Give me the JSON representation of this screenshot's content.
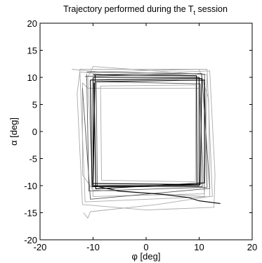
{
  "chart_data": {
    "type": "line",
    "title": "Trajectory performed during the T",
    "title_subscript": "t",
    "title_suffix": " session",
    "xlabel": "φ [deg]",
    "ylabel": "α [deg]",
    "xlim": [
      -20,
      20
    ],
    "ylim": [
      -20,
      20
    ],
    "xticks": [
      -20,
      -10,
      0,
      10,
      20
    ],
    "yticks": [
      -20,
      -15,
      -10,
      -5,
      0,
      5,
      10,
      15,
      20
    ],
    "xtick_labels": [
      "-20",
      "-10",
      "0",
      "10",
      "20"
    ],
    "ytick_labels": [
      "-20",
      "-15",
      "-10",
      "-5",
      "0",
      "5",
      "10",
      "15",
      "20"
    ],
    "grid": false,
    "box": true,
    "colors": {
      "dark": "#000000",
      "mid": "#555555",
      "light": "#aaaaaa"
    },
    "series": [
      {
        "shade": "dark",
        "points": [
          [
            -10,
            10
          ],
          [
            10,
            10
          ],
          [
            10,
            -10
          ],
          [
            -10,
            -10
          ],
          [
            -10,
            10
          ]
        ]
      },
      {
        "shade": "dark",
        "points": [
          [
            -10.5,
            9.5
          ],
          [
            10.5,
            9.8
          ],
          [
            10.2,
            -9.8
          ],
          [
            -10.2,
            -10.2
          ],
          [
            -10.5,
            9.5
          ]
        ]
      },
      {
        "shade": "dark",
        "points": [
          [
            -9.5,
            9.2
          ],
          [
            11,
            9.5
          ],
          [
            11,
            -9.5
          ],
          [
            -9.5,
            -10.6
          ],
          [
            -9.8,
            9.0
          ]
        ]
      },
      {
        "shade": "dark",
        "points": [
          [
            -10,
            10.5
          ],
          [
            9.5,
            10.3
          ],
          [
            9.6,
            -9.8
          ],
          [
            -10,
            -9.6
          ],
          [
            -9.6,
            10.5
          ]
        ]
      },
      {
        "shade": "mid",
        "points": [
          [
            -11.2,
            11
          ],
          [
            11,
            10.6
          ],
          [
            11.5,
            -10.3
          ],
          [
            -10.8,
            -11
          ],
          [
            -11.2,
            10.6
          ]
        ]
      },
      {
        "shade": "mid",
        "points": [
          [
            -9,
            9.2
          ],
          [
            10.2,
            8.8
          ],
          [
            10.6,
            -10.2
          ],
          [
            -9.2,
            -10.2
          ],
          [
            -9.4,
            9.2
          ]
        ]
      },
      {
        "shade": "dark",
        "points": [
          [
            -10,
            -10
          ],
          [
            -5,
            -11
          ],
          [
            3,
            -11.6
          ],
          [
            8,
            -12.2
          ],
          [
            10,
            -12.8
          ],
          [
            14,
            -13.3
          ]
        ]
      },
      {
        "shade": "mid",
        "points": [
          [
            -11.5,
            10.2
          ],
          [
            10.5,
            10.7
          ],
          [
            12,
            -10.5
          ],
          [
            -10.5,
            -12.5
          ],
          [
            -12,
            8
          ]
        ]
      },
      {
        "shade": "light",
        "points": [
          [
            -12.5,
            11.5
          ],
          [
            11.5,
            11.5
          ],
          [
            12.5,
            -12
          ],
          [
            -11.5,
            -13
          ],
          [
            -12.5,
            11.5
          ]
        ]
      },
      {
        "shade": "light",
        "points": [
          [
            -8.6,
            8.4
          ],
          [
            9.4,
            8.6
          ],
          [
            9.3,
            -9.3
          ],
          [
            -8.4,
            -9
          ],
          [
            -8.6,
            8.4
          ]
        ]
      },
      {
        "shade": "light",
        "points": [
          [
            -14,
            11.5
          ],
          [
            -9,
            11
          ],
          [
            10,
            11.5
          ],
          [
            11.8,
            6
          ],
          [
            12,
            -12
          ],
          [
            2,
            -13.5
          ],
          [
            -10.5,
            -14.8
          ],
          [
            -11,
            -16
          ],
          [
            -11.8,
            -15
          ]
        ]
      },
      {
        "shade": "light",
        "points": [
          [
            -13,
            7
          ],
          [
            -12.5,
            11
          ],
          [
            -8,
            10.5
          ],
          [
            12,
            11.2
          ],
          [
            13,
            -8
          ],
          [
            12.8,
            -14
          ],
          [
            0,
            -14.5
          ],
          [
            -12,
            -13.5
          ],
          [
            -13,
            7
          ]
        ]
      },
      {
        "shade": "light",
        "points": [
          [
            -11,
            10
          ],
          [
            -10,
            12
          ],
          [
            11.5,
            10.5
          ],
          [
            11,
            -11.5
          ],
          [
            -10,
            -12
          ],
          [
            -11,
            10
          ]
        ]
      },
      {
        "shade": "light",
        "points": [
          [
            -12,
            9
          ],
          [
            -11,
            8
          ],
          [
            10,
            8
          ],
          [
            11,
            -12
          ],
          [
            -10,
            -10.8
          ],
          [
            -12,
            -8
          ],
          [
            -12,
            9
          ]
        ]
      }
    ]
  }
}
